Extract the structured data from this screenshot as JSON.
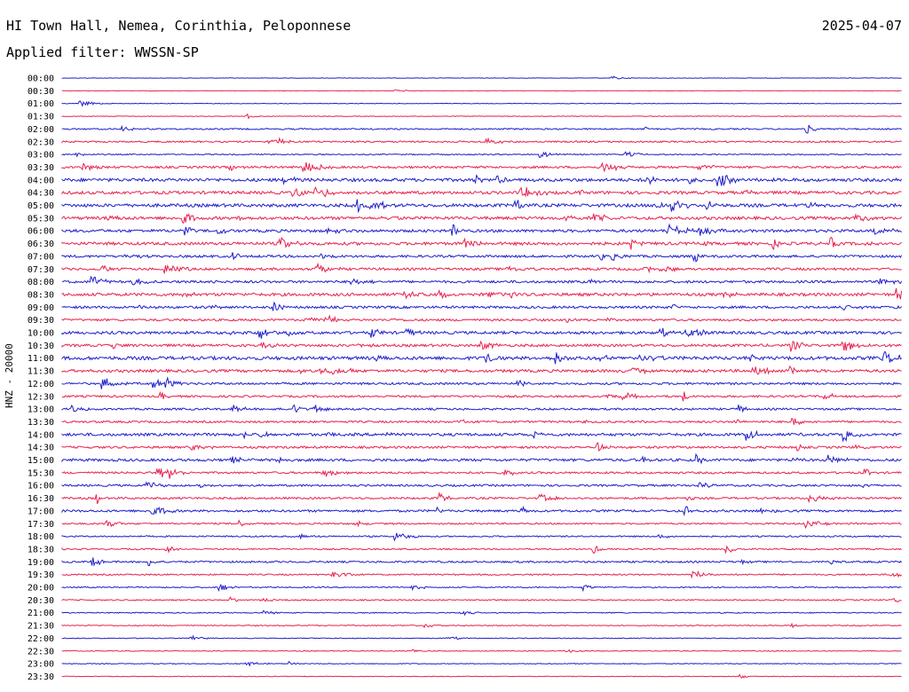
{
  "header": {
    "station": "HI Town Hall, Nemea, Corinthia, Peloponnese",
    "date": "2025-04-07",
    "filter": "Applied filter: WWSSN-SP"
  },
  "channel_label": "HNZ - 20000",
  "chart_data": {
    "type": "line",
    "description_type": "helicorder",
    "title": "HI Town Hall, Nemea, Corinthia, Peloponnese",
    "ylabel": "HNZ - 20000",
    "row_labels": [
      "00:00",
      "00:30",
      "01:00",
      "01:30",
      "02:00",
      "02:30",
      "03:00",
      "03:30",
      "04:00",
      "04:30",
      "05:00",
      "05:30",
      "06:00",
      "06:30",
      "07:00",
      "07:30",
      "08:00",
      "08:30",
      "09:00",
      "09:30",
      "10:00",
      "10:30",
      "11:00",
      "11:30",
      "12:00",
      "12:30",
      "13:00",
      "13:30",
      "14:00",
      "14:30",
      "15:00",
      "15:30",
      "16:00",
      "16:30",
      "17:00",
      "17:30",
      "18:00",
      "18:30",
      "19:00",
      "19:30",
      "20:00",
      "20:30",
      "21:00",
      "21:30",
      "22:00",
      "22:30",
      "23:00",
      "23:30"
    ],
    "colors": [
      "#1f1fcc",
      "#e8224f"
    ],
    "noise_level": [
      0.4,
      0.4,
      0.6,
      0.6,
      1.4,
      1.6,
      1.2,
      2.2,
      3.2,
      3.0,
      3.2,
      3.0,
      2.8,
      3.0,
      2.4,
      2.4,
      2.4,
      3.0,
      2.4,
      2.2,
      2.8,
      2.6,
      3.4,
      2.8,
      2.2,
      2.0,
      2.0,
      2.0,
      2.8,
      2.2,
      2.6,
      2.0,
      2.0,
      2.0,
      2.2,
      1.6,
      1.4,
      1.4,
      1.8,
      1.4,
      1.2,
      1.2,
      1.0,
      1.0,
      0.8,
      0.8,
      0.8,
      0.6
    ],
    "grid": false
  }
}
